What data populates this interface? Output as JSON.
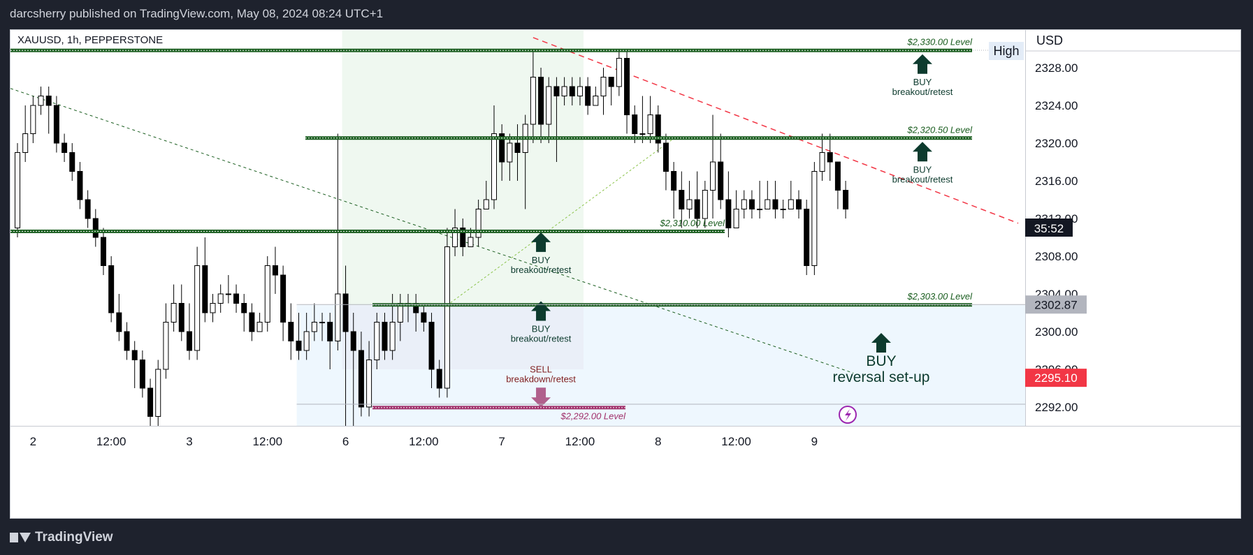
{
  "header": {
    "publish_text": "darcsherry published on TradingView.com, May 08, 2024 08:24 UTC+1"
  },
  "footer": {
    "brand": "TradingView"
  },
  "chart_data": {
    "type": "candlestick",
    "symbol_label": "XAUUSD, 1h, PEPPERSTONE",
    "currency": "USD",
    "high_label": "High",
    "price_axis": {
      "min": 2290,
      "max": 2332,
      "ticks": [
        "2292.00",
        "2296.00",
        "2300.00",
        "2304.00",
        "2308.00",
        "2312.00",
        "2316.00",
        "2320.00",
        "2324.00",
        "2328.00"
      ]
    },
    "time_axis": {
      "ticks": [
        {
          "label": "2",
          "i": 2
        },
        {
          "label": "12:00",
          "i": 12
        },
        {
          "label": "3",
          "i": 22
        },
        {
          "label": "12:00",
          "i": 32
        },
        {
          "label": "6",
          "i": 42
        },
        {
          "label": "12:00",
          "i": 52
        },
        {
          "label": "7",
          "i": 62
        },
        {
          "label": "12:00",
          "i": 72
        },
        {
          "label": "8",
          "i": 82
        },
        {
          "label": "12:00",
          "i": 92
        },
        {
          "label": "9",
          "i": 102
        }
      ]
    },
    "badges": {
      "countdown": "35:52",
      "price_gray": "2302.87",
      "price_red": "2295.10",
      "colors": {
        "countdown": "#131722",
        "gray": "#b2b5be",
        "red": "#f23645"
      }
    },
    "candles": [
      [
        2311,
        2319,
        2310,
        2320
      ],
      [
        2319,
        2321,
        2318,
        2324
      ],
      [
        2321,
        2324,
        2320,
        2325
      ],
      [
        2324,
        2325,
        2323,
        2326
      ],
      [
        2325,
        2324,
        2321,
        2326
      ],
      [
        2324,
        2320,
        2319,
        2325
      ],
      [
        2320,
        2319,
        2318,
        2321
      ],
      [
        2319,
        2317,
        2316,
        2320
      ],
      [
        2317,
        2314,
        2313,
        2318
      ],
      [
        2314,
        2312,
        2311,
        2315
      ],
      [
        2312,
        2310,
        2309,
        2313
      ],
      [
        2310,
        2307,
        2306,
        2311
      ],
      [
        2307,
        2302,
        2301,
        2308
      ],
      [
        2302,
        2300,
        2299,
        2304
      ],
      [
        2300,
        2298,
        2297,
        2301
      ],
      [
        2298,
        2297,
        2294,
        2299
      ],
      [
        2297,
        2294,
        2293,
        2298
      ],
      [
        2294,
        2291,
        2290,
        2295
      ],
      [
        2291,
        2296,
        2290,
        2297
      ],
      [
        2296,
        2301,
        2295,
        2303
      ],
      [
        2301,
        2303,
        2300,
        2305
      ],
      [
        2303,
        2300,
        2299,
        2305
      ],
      [
        2300,
        2298,
        2297,
        2303
      ],
      [
        2298,
        2307,
        2297,
        2309
      ],
      [
        2307,
        2302,
        2301,
        2310
      ],
      [
        2302,
        2303,
        2301,
        2304
      ],
      [
        2303,
        2304,
        2302,
        2305
      ],
      [
        2304,
        2304,
        2303,
        2306
      ],
      [
        2304,
        2303,
        2302,
        2305
      ],
      [
        2303,
        2302,
        2300,
        2304
      ],
      [
        2302,
        2300,
        2299,
        2303
      ],
      [
        2300,
        2301,
        2300,
        2302
      ],
      [
        2301,
        2307,
        2300,
        2308
      ],
      [
        2307,
        2306,
        2304,
        2309
      ],
      [
        2306,
        2301,
        2299,
        2307
      ],
      [
        2301,
        2299,
        2297,
        2303
      ],
      [
        2299,
        2298,
        2297,
        2302
      ],
      [
        2298,
        2300,
        2297,
        2302
      ],
      [
        2300,
        2301,
        2299,
        2303
      ],
      [
        2301,
        2301,
        2299,
        2302
      ],
      [
        2301,
        2299,
        2296,
        2302
      ],
      [
        2299,
        2304,
        2298,
        2321
      ],
      [
        2304,
        2300,
        2290,
        2307
      ],
      [
        2300,
        2298,
        2290,
        2302
      ],
      [
        2298,
        2292,
        2291,
        2300
      ],
      [
        2292,
        2297,
        2291,
        2299
      ],
      [
        2297,
        2301,
        2296,
        2302
      ],
      [
        2301,
        2298,
        2297,
        2302
      ],
      [
        2298,
        2301,
        2297,
        2304
      ],
      [
        2301,
        2303,
        2299,
        2304
      ],
      [
        2303,
        2303,
        2301,
        2304
      ],
      [
        2303,
        2302,
        2300,
        2304
      ],
      [
        2302,
        2301,
        2300,
        2303
      ],
      [
        2301,
        2296,
        2294,
        2302
      ],
      [
        2296,
        2294,
        2293,
        2297
      ],
      [
        2294,
        2309,
        2293,
        2311
      ],
      [
        2309,
        2311,
        2308,
        2313
      ],
      [
        2311,
        2309,
        2308,
        2312
      ],
      [
        2309,
        2310,
        2309,
        2311
      ],
      [
        2310,
        2313,
        2309,
        2314
      ],
      [
        2313,
        2314,
        2313,
        2316
      ],
      [
        2314,
        2321,
        2313,
        2324
      ],
      [
        2321,
        2318,
        2316,
        2322
      ],
      [
        2318,
        2320,
        2316,
        2321
      ],
      [
        2320,
        2319,
        2316,
        2322
      ],
      [
        2319,
        2322,
        2313,
        2323
      ],
      [
        2322,
        2327,
        2320,
        2330
      ],
      [
        2327,
        2322,
        2320,
        2328
      ],
      [
        2322,
        2326,
        2320,
        2327
      ],
      [
        2326,
        2325,
        2318,
        2327
      ],
      [
        2325,
        2326,
        2324,
        2327
      ],
      [
        2326,
        2325,
        2324,
        2327
      ],
      [
        2325,
        2326,
        2324,
        2327
      ],
      [
        2326,
        2324,
        2323,
        2327
      ],
      [
        2324,
        2325,
        2324,
        2326
      ],
      [
        2325,
        2327,
        2323,
        2328
      ],
      [
        2327,
        2326,
        2324,
        2327
      ],
      [
        2326,
        2329,
        2325,
        2330
      ],
      [
        2329,
        2323,
        2321,
        2330
      ],
      [
        2323,
        2321,
        2320,
        2324
      ],
      [
        2321,
        2321,
        2320,
        2325
      ],
      [
        2321,
        2323,
        2320,
        2325
      ],
      [
        2323,
        2320,
        2319,
        2324
      ],
      [
        2320,
        2317,
        2315,
        2321
      ],
      [
        2317,
        2315,
        2312,
        2318
      ],
      [
        2315,
        2313,
        2311,
        2317
      ],
      [
        2313,
        2314,
        2312,
        2316
      ],
      [
        2314,
        2312,
        2311,
        2317
      ],
      [
        2312,
        2315,
        2311,
        2316
      ],
      [
        2315,
        2318,
        2312,
        2323
      ],
      [
        2318,
        2314,
        2313,
        2321
      ],
      [
        2314,
        2311,
        2310,
        2317
      ],
      [
        2311,
        2313,
        2311,
        2315
      ],
      [
        2313,
        2314,
        2312,
        2315
      ],
      [
        2314,
        2313,
        2312,
        2315
      ],
      [
        2313,
        2313,
        2312,
        2316
      ],
      [
        2313,
        2314,
        2313,
        2316
      ],
      [
        2314,
        2313,
        2312,
        2316
      ],
      [
        2313,
        2313,
        2312,
        2314
      ],
      [
        2313,
        2314,
        2313,
        2316
      ],
      [
        2314,
        2313,
        2312,
        2315
      ],
      [
        2313,
        2307,
        2306,
        2314
      ],
      [
        2307,
        2317,
        2306,
        2318
      ],
      [
        2317,
        2319,
        2316,
        2321
      ],
      [
        2319,
        2318,
        2316,
        2321
      ],
      [
        2318,
        2315,
        2313,
        2318
      ],
      [
        2315,
        2313,
        2312,
        2316
      ]
    ],
    "levels": [
      {
        "label": "$2,330.00 Level",
        "price": 2329.8,
        "x0": 0,
        "x1": 1376,
        "color": "#1b5e20"
      },
      {
        "label": "$2,320.50 Level",
        "price": 2320.5,
        "x0": 422,
        "x1": 1376,
        "color": "#1b5e20"
      },
      {
        "label": "$2,310.00 Level",
        "price": 2310.6,
        "x0": 0,
        "x1": 1022,
        "color": "#1b5e20"
      },
      {
        "label": "$2,303.00 Level",
        "price": 2302.8,
        "x0": 518,
        "x1": 1376,
        "color": "#1b5e20"
      },
      {
        "label": "$2,292.00 Level",
        "price": 2291.9,
        "x0": 518,
        "x1": 880,
        "color": "#a0306a"
      }
    ],
    "annotations": [
      {
        "dir": "BUY",
        "sub": "breakout/retest",
        "i": 62,
        "price": 2327.5
      },
      {
        "dir": "BUY",
        "sub": "breakout/retest",
        "i": 62,
        "price": 2318.2
      },
      {
        "dir": "BUY",
        "sub": "breakout/retest",
        "i": 35,
        "price": 2308.6
      },
      {
        "dir": "BUY",
        "sub": "breakout/retest",
        "i": 35,
        "price": 2301.3
      },
      {
        "dir": "SELL",
        "sub": "breakdown/retest",
        "i": 35,
        "price": 2294.5
      }
    ],
    "reversal_label": {
      "dir": "BUY",
      "sub": "reversal set-up"
    },
    "colors": {
      "bull": "#ffffff",
      "bear": "#000000",
      "support": "#1b5e20",
      "sell": "#a0306a",
      "trend": "#f23645",
      "bg": "#ffffff"
    }
  }
}
